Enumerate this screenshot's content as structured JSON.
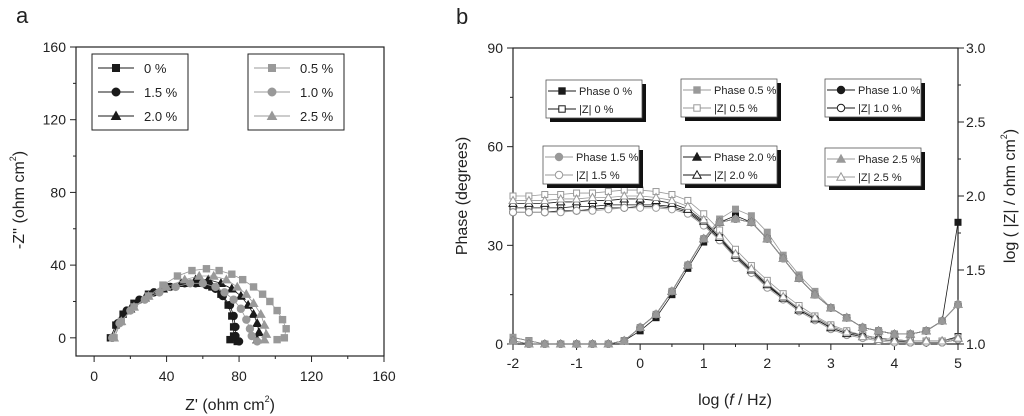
{
  "chart_data": [
    {
      "panel_label": "a",
      "type": "scatter",
      "xlabel": "Z' (ohm cm",
      "ylabel": "-Z'' (ohm cm",
      "unit_superscript": "2",
      "xlim": [
        -10,
        160
      ],
      "ylim": [
        -10,
        160
      ],
      "xticks": [
        0,
        40,
        80,
        120,
        160
      ],
      "yticks": [
        0,
        40,
        80,
        120,
        160
      ],
      "grid": false,
      "legend_placement": "top (two boxes: top-left and top-right)",
      "series": [
        {
          "name": "0 %",
          "color": "#1a1a1a",
          "marker": "square",
          "points": [
            [
              9,
              0
            ],
            [
              12,
              7
            ],
            [
              16,
              13
            ],
            [
              22,
              19
            ],
            [
              30,
              24
            ],
            [
              40,
              28
            ],
            [
              50,
              30
            ],
            [
              58,
              30
            ],
            [
              65,
              28
            ],
            [
              70,
              24
            ],
            [
              74,
              18
            ],
            [
              76,
              12
            ],
            [
              77,
              6
            ],
            [
              77,
              1
            ],
            [
              75,
              -1
            ],
            [
              79,
              -2
            ]
          ]
        },
        {
          "name": "1.5 %",
          "color": "#1a1a1a",
          "marker": "circle",
          "points": [
            [
              10,
              0
            ],
            [
              13,
              8
            ],
            [
              18,
              15
            ],
            [
              25,
              21
            ],
            [
              33,
              25
            ],
            [
              42,
              28
            ],
            [
              50,
              30
            ],
            [
              56,
              30
            ],
            [
              62,
              29
            ],
            [
              67,
              27
            ],
            [
              71,
              23
            ],
            [
              75,
              18
            ],
            [
              77,
              12
            ],
            [
              78,
              6
            ],
            [
              78,
              1
            ],
            [
              80,
              -2
            ]
          ]
        },
        {
          "name": "2.0 %",
          "color": "#1a1a1a",
          "marker": "triangle",
          "points": [
            [
              10,
              0
            ],
            [
              14,
              9
            ],
            [
              20,
              16
            ],
            [
              28,
              22
            ],
            [
              38,
              27
            ],
            [
              48,
              30
            ],
            [
              56,
              32
            ],
            [
              63,
              32
            ],
            [
              70,
              30
            ],
            [
              76,
              27
            ],
            [
              81,
              23
            ],
            [
              85,
              18
            ],
            [
              88,
              13
            ],
            [
              90,
              8
            ],
            [
              91,
              3
            ],
            [
              90,
              -1
            ]
          ]
        },
        {
          "name": "0.5 %",
          "color": "#999999",
          "marker": "square",
          "points": [
            [
              11,
              0
            ],
            [
              15,
              9
            ],
            [
              22,
              17
            ],
            [
              30,
              23
            ],
            [
              38,
              29
            ],
            [
              46,
              34
            ],
            [
              54,
              37
            ],
            [
              62,
              38
            ],
            [
              69,
              37
            ],
            [
              76,
              35
            ],
            [
              82,
              32
            ],
            [
              88,
              28
            ],
            [
              93,
              24
            ],
            [
              97,
              20
            ],
            [
              101,
              15
            ],
            [
              104,
              10
            ],
            [
              106,
              5
            ],
            [
              105,
              0
            ],
            [
              101,
              -1
            ]
          ]
        },
        {
          "name": "1.0 %",
          "color": "#999999",
          "marker": "circle",
          "points": [
            [
              10,
              0
            ],
            [
              14,
              8
            ],
            [
              20,
              15
            ],
            [
              28,
              21
            ],
            [
              36,
              25
            ],
            [
              45,
              28
            ],
            [
              53,
              30
            ],
            [
              60,
              30
            ],
            [
              67,
              28
            ],
            [
              72,
              25
            ],
            [
              77,
              21
            ],
            [
              81,
              16
            ],
            [
              84,
              10
            ],
            [
              86,
              5
            ],
            [
              87,
              1
            ],
            [
              90,
              -2
            ]
          ]
        },
        {
          "name": "2.5 %",
          "color": "#999999",
          "marker": "triangle",
          "points": [
            [
              11,
              0
            ],
            [
              15,
              9
            ],
            [
              22,
              17
            ],
            [
              30,
              23
            ],
            [
              40,
              28
            ],
            [
              50,
              32
            ],
            [
              58,
              34
            ],
            [
              66,
              34
            ],
            [
              73,
              32
            ],
            [
              79,
              28
            ],
            [
              84,
              24
            ],
            [
              88,
              19
            ],
            [
              92,
              13
            ],
            [
              94,
              7
            ],
            [
              95,
              2
            ],
            [
              94,
              -1
            ]
          ]
        }
      ]
    },
    {
      "panel_label": "b",
      "type": "scatter",
      "xlabel_pre": "log (",
      "xlabel_var": "f",
      "xlabel_post": " / Hz)",
      "ylabel": "Phase (degrees)",
      "y2label": "log ( |Z| / ohm cm",
      "y2label_sup": "2",
      "y2label_end": ")",
      "xlim": [
        -2,
        5
      ],
      "ylim": [
        0,
        90
      ],
      "y2lim": [
        1.0,
        3.0
      ],
      "xticks": [
        -2,
        -1,
        0,
        1,
        2,
        3,
        4,
        5
      ],
      "yticks": [
        0,
        30,
        60,
        90
      ],
      "y2ticks": [
        "1.0",
        "1.5",
        "2.0",
        "2.5",
        "3.0"
      ],
      "grid": false,
      "legend_placement": "top (six boxes in two rows)",
      "x": [
        -2,
        -1.75,
        -1.5,
        -1.25,
        -1,
        -0.75,
        -0.5,
        -0.25,
        0,
        0.25,
        0.5,
        0.75,
        1,
        1.25,
        1.5,
        1.75,
        2,
        2.25,
        2.5,
        2.75,
        3,
        3.25,
        3.5,
        3.75,
        4,
        4.25,
        4.5,
        4.75,
        5
      ],
      "series": [
        {
          "name": "Phase 0 %",
          "axis": "left",
          "color": "#1a1a1a",
          "marker": "square",
          "open": false,
          "values": [
            2,
            1,
            0,
            0,
            0,
            0,
            0,
            1,
            4,
            8,
            15,
            23,
            31,
            37,
            39,
            37,
            32,
            26,
            20,
            15,
            11,
            8,
            5,
            4,
            3,
            3,
            4,
            7,
            37
          ]
        },
        {
          "name": "|Z|  0 %",
          "axis": "right",
          "color": "#1a1a1a",
          "marker": "square",
          "open": true,
          "values": [
            1.92,
            1.92,
            1.92,
            1.92,
            1.93,
            1.93,
            1.94,
            1.94,
            1.94,
            1.94,
            1.93,
            1.9,
            1.82,
            1.72,
            1.6,
            1.5,
            1.4,
            1.32,
            1.24,
            1.18,
            1.12,
            1.08,
            1.06,
            1.04,
            1.03,
            1.02,
            1.02,
            1.02,
            1.05
          ]
        },
        {
          "name": "Phase 0.5 %",
          "axis": "left",
          "color": "#999999",
          "marker": "square",
          "open": false,
          "values": [
            2,
            1,
            0,
            0,
            0,
            0,
            0,
            1,
            5,
            9,
            16,
            24,
            32,
            38,
            41,
            39,
            34,
            27,
            21,
            16,
            11,
            8,
            5,
            4,
            3,
            3,
            4,
            7,
            12
          ]
        },
        {
          "name": "|Z|  0.5 %",
          "axis": "right",
          "color": "#999999",
          "marker": "square",
          "open": true,
          "values": [
            2.0,
            2.0,
            2.01,
            2.01,
            2.02,
            2.02,
            2.03,
            2.04,
            2.04,
            2.03,
            2.01,
            1.97,
            1.88,
            1.77,
            1.64,
            1.53,
            1.43,
            1.34,
            1.26,
            1.19,
            1.13,
            1.09,
            1.06,
            1.04,
            1.03,
            1.02,
            1.02,
            1.02,
            1.04
          ]
        },
        {
          "name": "Phase 1.0 %",
          "axis": "left",
          "color": "#1a1a1a",
          "marker": "circle",
          "open": false,
          "values": [
            1,
            0,
            0,
            0,
            0,
            0,
            0,
            1,
            5,
            9,
            16,
            24,
            32,
            37,
            38,
            37,
            32,
            26,
            20,
            15,
            11,
            8,
            5,
            4,
            3,
            3,
            4,
            7,
            12
          ]
        },
        {
          "name": "|Z|  1.0 %",
          "axis": "right",
          "color": "#1a1a1a",
          "marker": "circle",
          "open": true,
          "values": [
            1.89,
            1.89,
            1.89,
            1.9,
            1.9,
            1.91,
            1.92,
            1.92,
            1.93,
            1.93,
            1.92,
            1.89,
            1.81,
            1.71,
            1.59,
            1.49,
            1.39,
            1.31,
            1.23,
            1.17,
            1.11,
            1.07,
            1.05,
            1.03,
            1.02,
            1.01,
            1.01,
            1.01,
            1.03
          ]
        },
        {
          "name": "Phase 1.5 %",
          "axis": "left",
          "color": "#999999",
          "marker": "circle",
          "open": false,
          "values": [
            1,
            0,
            0,
            0,
            0,
            0,
            0,
            1,
            5,
            9,
            16,
            24,
            32,
            37,
            38,
            37,
            32,
            26,
            20,
            15,
            11,
            8,
            5,
            4,
            3,
            3,
            4,
            7,
            12
          ]
        },
        {
          "name": "|Z|  1.5 %",
          "axis": "right",
          "color": "#999999",
          "marker": "circle",
          "open": true,
          "values": [
            1.89,
            1.89,
            1.89,
            1.89,
            1.9,
            1.9,
            1.91,
            1.92,
            1.92,
            1.92,
            1.91,
            1.88,
            1.8,
            1.7,
            1.58,
            1.48,
            1.38,
            1.3,
            1.22,
            1.16,
            1.1,
            1.06,
            1.04,
            1.02,
            1.01,
            1.01,
            1.01,
            1.01,
            1.03
          ]
        },
        {
          "name": "Phase 2.0 %",
          "axis": "left",
          "color": "#1a1a1a",
          "marker": "triangle",
          "open": false,
          "values": [
            1,
            0,
            0,
            0,
            0,
            0,
            0,
            1,
            5,
            9,
            16,
            24,
            32,
            37,
            38,
            37,
            32,
            26,
            20,
            15,
            11,
            8,
            5,
            4,
            3,
            3,
            4,
            7,
            12
          ]
        },
        {
          "name": "|Z| 2.0 %",
          "axis": "right",
          "color": "#1a1a1a",
          "marker": "triangle",
          "open": true,
          "values": [
            1.95,
            1.95,
            1.95,
            1.96,
            1.96,
            1.97,
            1.97,
            1.98,
            1.98,
            1.97,
            1.95,
            1.91,
            1.83,
            1.72,
            1.6,
            1.5,
            1.4,
            1.31,
            1.23,
            1.17,
            1.11,
            1.07,
            1.05,
            1.03,
            1.02,
            1.02,
            1.02,
            1.02,
            1.04
          ]
        },
        {
          "name": "Phase 2.5 %",
          "axis": "left",
          "color": "#999999",
          "marker": "triangle",
          "open": false,
          "values": [
            1,
            0,
            0,
            0,
            0,
            0,
            0,
            1,
            5,
            9,
            16,
            24,
            32,
            37,
            38,
            37,
            32,
            26,
            20,
            15,
            11,
            8,
            5,
            4,
            3,
            3,
            4,
            7,
            12
          ]
        },
        {
          "name": "|Z|  2.5 %",
          "axis": "right",
          "color": "#999999",
          "marker": "triangle",
          "open": true,
          "values": [
            1.97,
            1.97,
            1.97,
            1.98,
            1.98,
            1.99,
            1.99,
            2.0,
            2.0,
            1.99,
            1.97,
            1.93,
            1.84,
            1.73,
            1.61,
            1.51,
            1.41,
            1.32,
            1.24,
            1.18,
            1.12,
            1.08,
            1.05,
            1.03,
            1.02,
            1.02,
            1.02,
            1.02,
            1.04
          ]
        }
      ]
    }
  ]
}
